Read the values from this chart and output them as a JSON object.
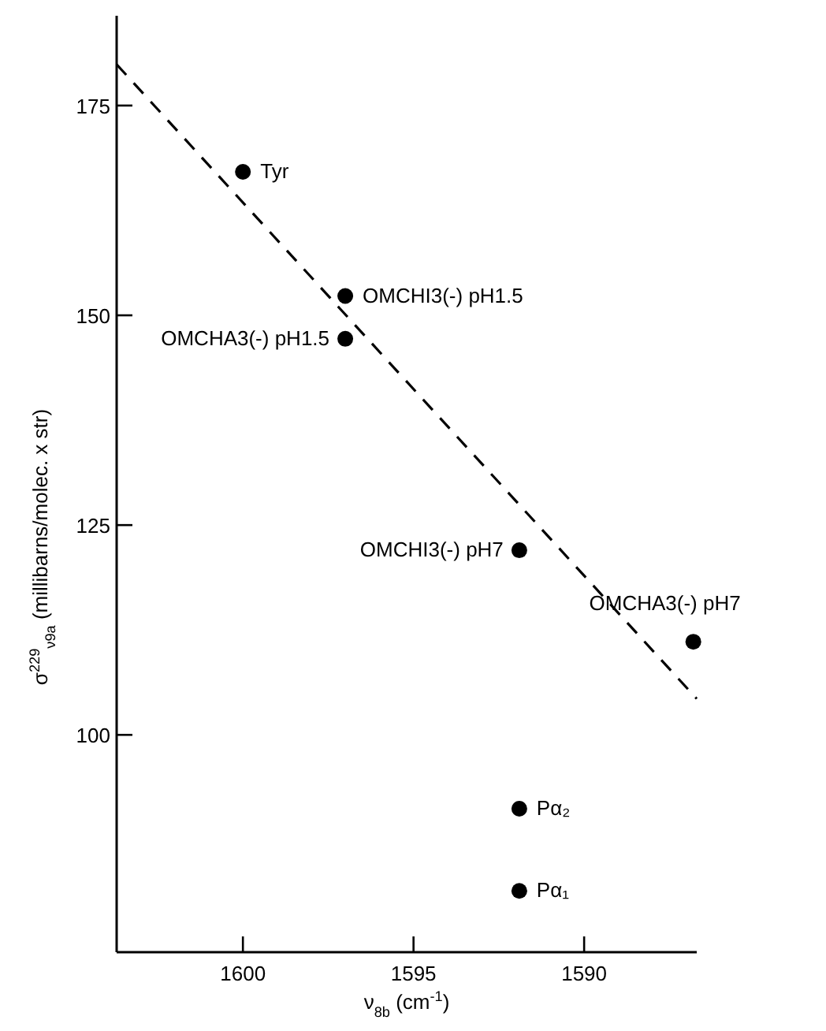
{
  "chart_data": {
    "type": "scatter",
    "xlabel": "ν$_{8b}$ (cm$^{-1}$)",
    "ylabel": "σ$^{229}$$_{ν9a}$ (millibarns/molec. x str)",
    "xlim": [
      1603.7,
      1586.7
    ],
    "ylim": [
      74.1,
      185.7
    ],
    "xticks": [
      1600,
      1595,
      1590
    ],
    "yticks": [
      100,
      125,
      150,
      175
    ],
    "grid": false,
    "series": [
      {
        "color": "#000000",
        "marker": "circle",
        "x": [
          1600,
          1597,
          1597,
          1591.9,
          1586.8,
          1591.9,
          1591.9
        ],
        "values": [
          167.1,
          152.3,
          147.2,
          122,
          111.1,
          91.2,
          81.4
        ]
      },
      {
        "type": "line",
        "color": "#000000",
        "marker": "none",
        "line_style": "dashed",
        "x": [
          1603.7,
          1586.7
        ],
        "values": [
          179.9,
          104.3
        ]
      }
    ],
    "annotations": [
      {
        "text": "Tyr",
        "x": 1600,
        "y": 167.1
      },
      {
        "text": "OMCHI3(-) pH1.5",
        "x": 1597,
        "y": 152.3
      },
      {
        "text": "OMCHA3(-) pH1.5",
        "x": 1597,
        "y": 147.2
      },
      {
        "text": "OMCHI3(-) pH7",
        "x": 1591.9,
        "y": 122
      },
      {
        "text": "OMCHA3(-) pH7",
        "x": 1586.8,
        "y": 111.1
      },
      {
        "text": "Pα₂",
        "x": 1591.9,
        "y": 91.2
      },
      {
        "text": "Pα₁",
        "x": 1591.9,
        "y": 81.4
      }
    ]
  }
}
